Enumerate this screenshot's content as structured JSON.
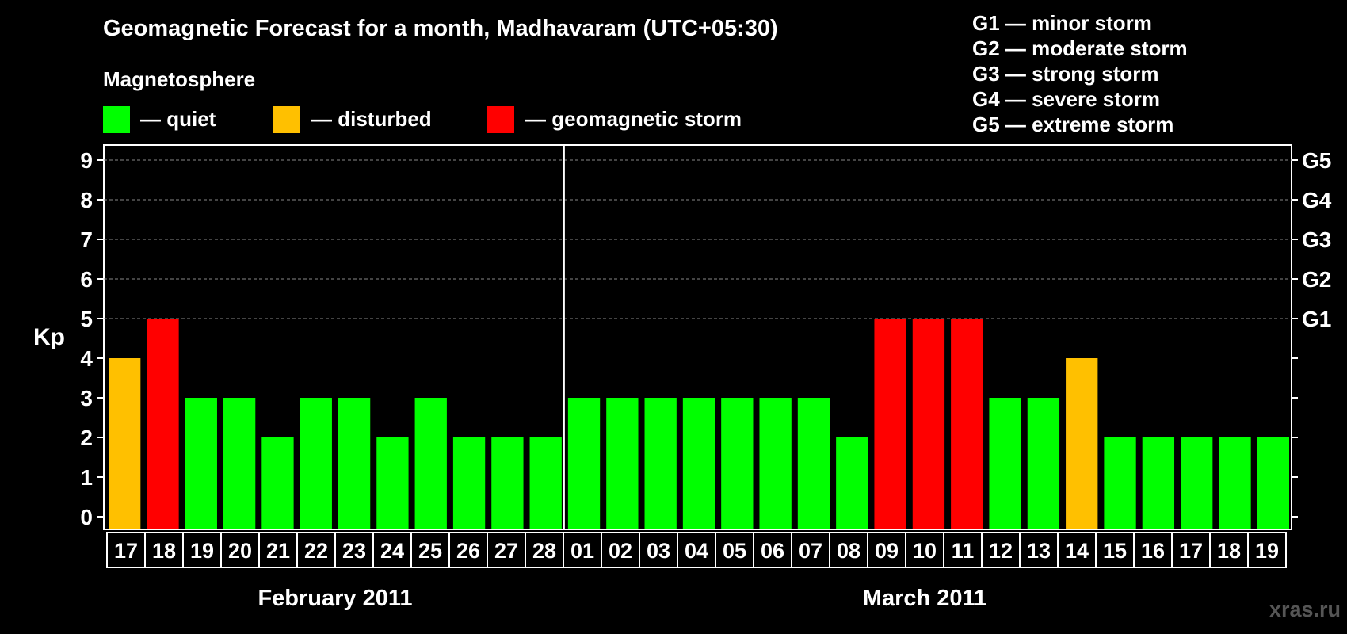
{
  "header": {
    "title": "Geomagnetic Forecast for a month, Madhavaram (UTC+05:30)",
    "subtitle": "Magnetosphere",
    "watermark": "xras.ru"
  },
  "legend": [
    {
      "label": "— quiet",
      "color": "#00ff00"
    },
    {
      "label": "— disturbed",
      "color": "#ffc000"
    },
    {
      "label": "— geomagnetic storm",
      "color": "#ff0000"
    }
  ],
  "storm_scale": [
    "G1 — minor storm",
    "G2 — moderate storm",
    "G3 — strong storm",
    "G4 — severe storm",
    "G5 — extreme storm"
  ],
  "chart_data": {
    "type": "bar",
    "ylabel": "Kp",
    "ylim": [
      0,
      9
    ],
    "yticks": [
      0,
      1,
      2,
      3,
      4,
      5,
      6,
      7,
      8,
      9
    ],
    "right_axis_labels": [
      {
        "kp": 5,
        "label": "G1"
      },
      {
        "kp": 6,
        "label": "G2"
      },
      {
        "kp": 7,
        "label": "G3"
      },
      {
        "kp": 8,
        "label": "G4"
      },
      {
        "kp": 9,
        "label": "G5"
      }
    ],
    "grid": "dashed horizontal at Kp 5-9",
    "categories": [
      "17",
      "18",
      "19",
      "20",
      "21",
      "22",
      "23",
      "24",
      "25",
      "26",
      "27",
      "28",
      "01",
      "02",
      "03",
      "04",
      "05",
      "06",
      "07",
      "08",
      "09",
      "10",
      "11",
      "12",
      "13",
      "14",
      "15",
      "16",
      "17",
      "18",
      "19"
    ],
    "values": [
      4,
      5,
      3,
      3,
      2,
      3,
      3,
      2,
      3,
      2,
      2,
      2,
      3,
      3,
      3,
      3,
      3,
      3,
      3,
      2,
      5,
      5,
      5,
      3,
      3,
      4,
      2,
      2,
      2,
      2,
      2
    ],
    "months": [
      {
        "label": "February 2011",
        "days": 12
      },
      {
        "label": "March 2011",
        "days": 19
      }
    ],
    "colors": {
      "quiet": "#00ff00",
      "disturbed": "#ffc000",
      "storm": "#ff0000"
    }
  }
}
